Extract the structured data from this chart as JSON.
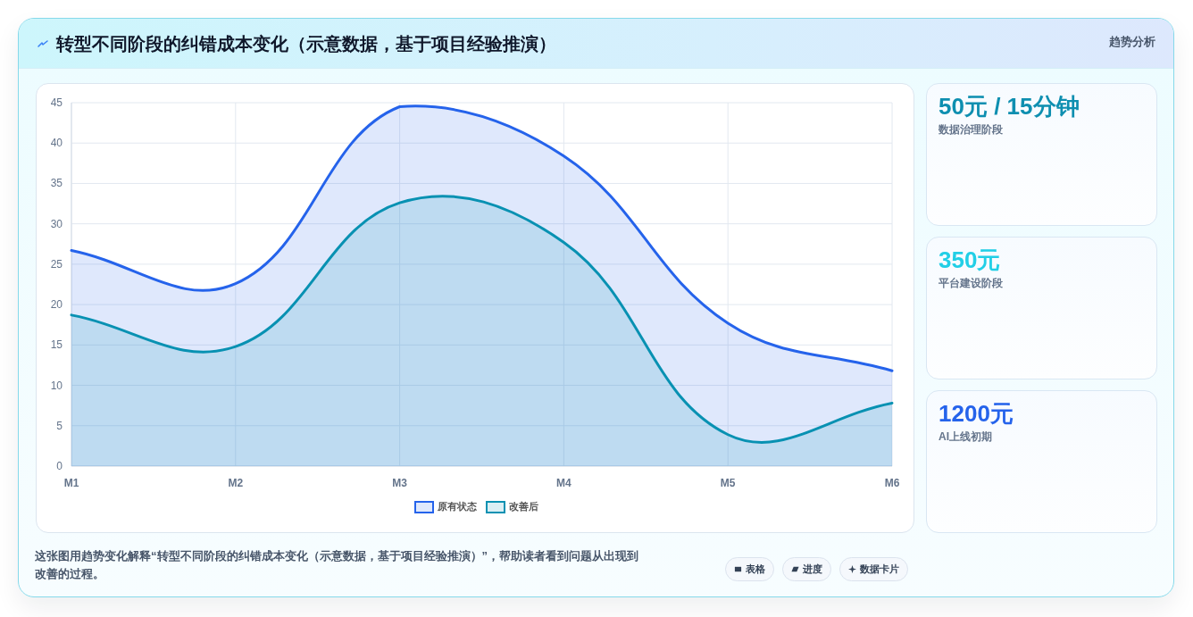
{
  "chart_data": [
    {
      "type": "area",
      "title": "转型不同阶段的纠错成本变化（示意数据，基于项目经验推演）",
      "categories": [
        "M1",
        "M2",
        "M3",
        "M4",
        "M5",
        "M6"
      ],
      "series": [
        {
          "name": "原有状态",
          "color": "#2563eb",
          "values": [
            26.7,
            22.6,
            44.5,
            38.4,
            17.7,
            11.8
          ]
        },
        {
          "name": "改善后",
          "color": "#0891b2",
          "values": [
            18.7,
            14.8,
            32.6,
            27.7,
            3.9,
            7.8
          ]
        }
      ],
      "ylim": [
        0,
        45
      ],
      "yticks": [
        0,
        5,
        10,
        15,
        20,
        25,
        30,
        35,
        40,
        45
      ],
      "grid": true,
      "legend": "bottom",
      "marker": "none",
      "annotations": [
        "趋势分析",
        "这张图用趋势变化解释“转型不同阶段的纠错成本变化（示意数据，基于项目经验推演）”，帮助读者看到问题从出现到改善的过程。",
        "表格",
        "进度",
        "数据卡片"
      ]
    },
    {
      "type": "other",
      "title": "50元 / 15分钟",
      "subtitle": "数据治理阶段",
      "color": "#0e8fb0"
    },
    {
      "type": "other",
      "title": "350元",
      "subtitle": "平台建设阶段",
      "color": "#22cfe6"
    },
    {
      "type": "other",
      "title": "1200元",
      "subtitle": "AI上线初期",
      "color": "#2563eb"
    }
  ]
}
